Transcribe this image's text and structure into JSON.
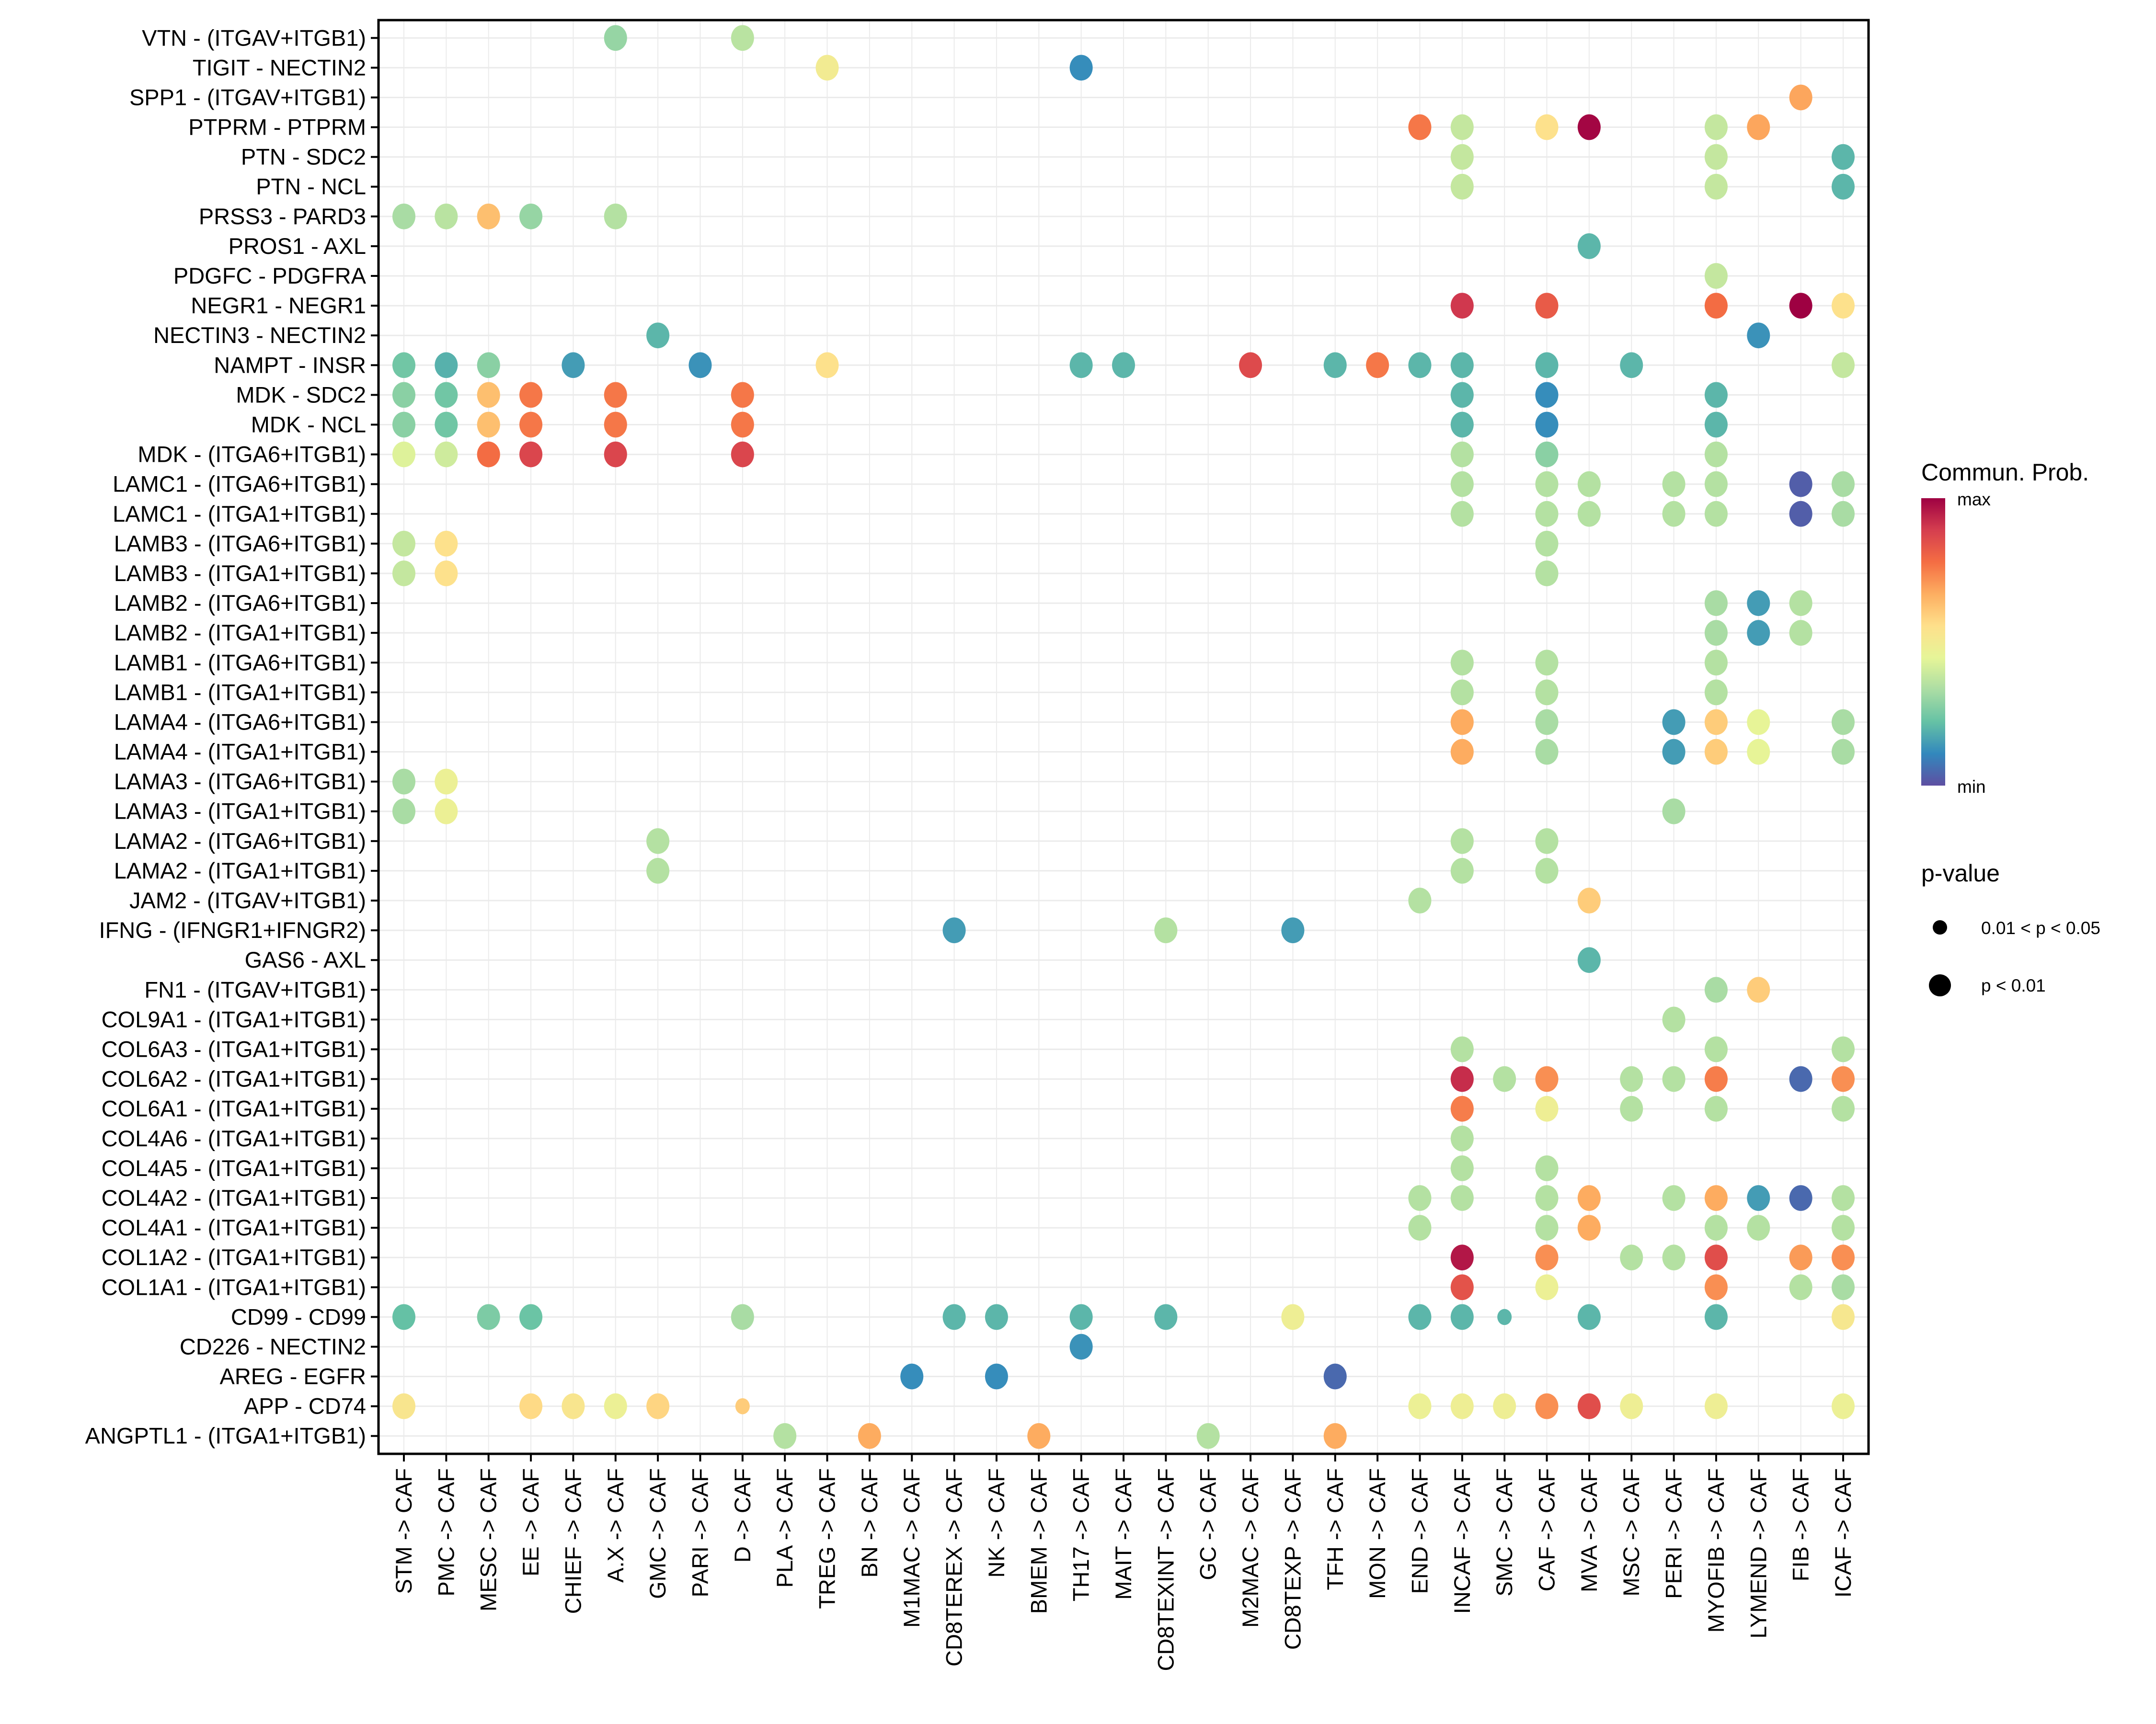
{
  "chart_data": {
    "type": "scatter",
    "subtype": "bubble-dot-plot",
    "title": "",
    "xlabel": "",
    "ylabel": "",
    "grid": true,
    "legend_placement": "right",
    "x_categories": [
      "STM -> CAF",
      "PMC -> CAF",
      "MESC -> CAF",
      "EE -> CAF",
      "CHIEF -> CAF",
      "A.X -> CAF",
      "GMC -> CAF",
      "PARI -> CAF",
      "D -> CAF",
      "PLA -> CAF",
      "TREG -> CAF",
      "BN -> CAF",
      "M1MAC -> CAF",
      "CD8TEREX -> CAF",
      "NK -> CAF",
      "BMEM -> CAF",
      "TH17 -> CAF",
      "MAIT -> CAF",
      "CD8TEXINT -> CAF",
      "GC -> CAF",
      "M2MAC -> CAF",
      "CD8TEXP -> CAF",
      "TFH -> CAF",
      "MON -> CAF",
      "END -> CAF",
      "INCAF -> CAF",
      "SMC -> CAF",
      "CAF -> CAF",
      "MVA -> CAF",
      "MSC -> CAF",
      "PERI -> CAF",
      "MYOFIB -> CAF",
      "LYMEND -> CAF",
      "FIB -> CAF",
      "ICAF -> CAF"
    ],
    "y_categories_top_to_bottom": [
      "VTN - (ITGAV+ITGB1)",
      "TIGIT - NECTIN2",
      "SPP1 - (ITGAV+ITGB1)",
      "PTPRM - PTPRM",
      "PTN - SDC2",
      "PTN - NCL",
      "PRSS3 - PARD3",
      "PROS1 - AXL",
      "PDGFC - PDGFRA",
      "NEGR1 - NEGR1",
      "NECTIN3 - NECTIN2",
      "NAMPT - INSR",
      "MDK - SDC2",
      "MDK - NCL",
      "MDK - (ITGA6+ITGB1)",
      "LAMC1 - (ITGA6+ITGB1)",
      "LAMC1 - (ITGA1+ITGB1)",
      "LAMB3 - (ITGA6+ITGB1)",
      "LAMB3 - (ITGA1+ITGB1)",
      "LAMB2 - (ITGA6+ITGB1)",
      "LAMB2 - (ITGA1+ITGB1)",
      "LAMB1 - (ITGA6+ITGB1)",
      "LAMB1 - (ITGA1+ITGB1)",
      "LAMA4 - (ITGA6+ITGB1)",
      "LAMA4 - (ITGA1+ITGB1)",
      "LAMA3 - (ITGA6+ITGB1)",
      "LAMA3 - (ITGA1+ITGB1)",
      "LAMA2 - (ITGA6+ITGB1)",
      "LAMA2 - (ITGA1+ITGB1)",
      "JAM2 - (ITGAV+ITGB1)",
      "IFNG - (IFNGR1+IFNGR2)",
      "GAS6 - AXL",
      "FN1 - (ITGAV+ITGB1)",
      "COL9A1 - (ITGA1+ITGB1)",
      "COL6A3 - (ITGA1+ITGB1)",
      "COL6A2 - (ITGA1+ITGB1)",
      "COL6A1 - (ITGA1+ITGB1)",
      "COL4A6 - (ITGA1+ITGB1)",
      "COL4A5 - (ITGA1+ITGB1)",
      "COL4A2 - (ITGA1+ITGB1)",
      "COL4A1 - (ITGA1+ITGB1)",
      "COL1A2 - (ITGA1+ITGB1)",
      "COL1A1 - (ITGA1+ITGB1)",
      "CD99 - CD99",
      "CD226 - NECTIN2",
      "AREG - EGFR",
      "APP - CD74",
      "ANGPTL1 - (ITGA1+ITGB1)"
    ],
    "value_scale": "relative communication probability, 0 = min, 1 = max",
    "point_format": "[x_index, relative_prob, p_class] where p_class 1 = p < 0.01, 0 = 0.01 < p < 0.05",
    "rows": [
      [
        [
          5,
          0.3,
          1
        ],
        [
          8,
          0.36,
          1
        ]
      ],
      [
        [
          10,
          0.5,
          1
        ],
        [
          16,
          0.12,
          1
        ]
      ],
      [
        [
          33,
          0.68,
          1
        ]
      ],
      [
        [
          24,
          0.76,
          1
        ],
        [
          25,
          0.38,
          1
        ],
        [
          27,
          0.55,
          1
        ],
        [
          28,
          0.99,
          1
        ],
        [
          31,
          0.38,
          1
        ],
        [
          32,
          0.68,
          1
        ]
      ],
      [
        [
          25,
          0.38,
          1
        ],
        [
          31,
          0.38,
          1
        ],
        [
          34,
          0.2,
          1
        ]
      ],
      [
        [
          25,
          0.38,
          1
        ],
        [
          31,
          0.38,
          1
        ],
        [
          34,
          0.2,
          1
        ]
      ],
      [
        [
          0,
          0.33,
          1
        ],
        [
          1,
          0.36,
          1
        ],
        [
          2,
          0.63,
          1
        ],
        [
          3,
          0.3,
          1
        ],
        [
          5,
          0.35,
          1
        ]
      ],
      [
        [
          28,
          0.2,
          1
        ]
      ],
      [
        [
          31,
          0.38,
          1
        ]
      ],
      [
        [
          25,
          0.9,
          1
        ],
        [
          27,
          0.82,
          1
        ],
        [
          31,
          0.78,
          1
        ],
        [
          33,
          1.0,
          1
        ],
        [
          34,
          0.55,
          1
        ]
      ],
      [
        [
          6,
          0.2,
          1
        ],
        [
          32,
          0.13,
          1
        ]
      ],
      [
        [
          0,
          0.24,
          1
        ],
        [
          1,
          0.19,
          1
        ],
        [
          2,
          0.28,
          1
        ],
        [
          4,
          0.15,
          1
        ],
        [
          7,
          0.13,
          1
        ],
        [
          10,
          0.55,
          1
        ],
        [
          16,
          0.2,
          1
        ],
        [
          17,
          0.2,
          1
        ],
        [
          20,
          0.86,
          1
        ],
        [
          22,
          0.2,
          1
        ],
        [
          23,
          0.76,
          1
        ],
        [
          24,
          0.2,
          1
        ],
        [
          25,
          0.2,
          1
        ],
        [
          27,
          0.2,
          1
        ],
        [
          29,
          0.2,
          1
        ],
        [
          34,
          0.38,
          1
        ]
      ],
      [
        [
          0,
          0.28,
          1
        ],
        [
          1,
          0.24,
          1
        ],
        [
          2,
          0.63,
          1
        ],
        [
          3,
          0.76,
          1
        ],
        [
          5,
          0.76,
          1
        ],
        [
          8,
          0.76,
          1
        ],
        [
          25,
          0.2,
          1
        ],
        [
          27,
          0.12,
          1
        ],
        [
          31,
          0.2,
          1
        ]
      ],
      [
        [
          0,
          0.28,
          1
        ],
        [
          1,
          0.24,
          1
        ],
        [
          2,
          0.63,
          1
        ],
        [
          3,
          0.76,
          1
        ],
        [
          5,
          0.76,
          1
        ],
        [
          8,
          0.76,
          1
        ],
        [
          25,
          0.2,
          1
        ],
        [
          27,
          0.12,
          1
        ],
        [
          31,
          0.2,
          1
        ]
      ],
      [
        [
          0,
          0.43,
          1
        ],
        [
          1,
          0.4,
          1
        ],
        [
          2,
          0.78,
          1
        ],
        [
          3,
          0.87,
          1
        ],
        [
          5,
          0.87,
          1
        ],
        [
          8,
          0.87,
          1
        ],
        [
          25,
          0.35,
          1
        ],
        [
          27,
          0.28,
          1
        ],
        [
          31,
          0.35,
          1
        ]
      ],
      [
        [
          25,
          0.35,
          1
        ],
        [
          27,
          0.35,
          1
        ],
        [
          28,
          0.35,
          1
        ],
        [
          30,
          0.35,
          1
        ],
        [
          31,
          0.35,
          1
        ],
        [
          33,
          0.03,
          1
        ],
        [
          34,
          0.33,
          1
        ]
      ],
      [
        [
          25,
          0.35,
          1
        ],
        [
          27,
          0.35,
          1
        ],
        [
          28,
          0.35,
          1
        ],
        [
          30,
          0.35,
          1
        ],
        [
          31,
          0.35,
          1
        ],
        [
          33,
          0.03,
          1
        ],
        [
          34,
          0.33,
          1
        ]
      ],
      [
        [
          0,
          0.38,
          1
        ],
        [
          1,
          0.55,
          1
        ],
        [
          27,
          0.35,
          1
        ]
      ],
      [
        [
          0,
          0.38,
          1
        ],
        [
          1,
          0.55,
          1
        ],
        [
          27,
          0.35,
          1
        ]
      ],
      [
        [
          31,
          0.33,
          1
        ],
        [
          32,
          0.15,
          1
        ],
        [
          33,
          0.35,
          1
        ]
      ],
      [
        [
          31,
          0.33,
          1
        ],
        [
          32,
          0.15,
          1
        ],
        [
          33,
          0.35,
          1
        ]
      ],
      [
        [
          25,
          0.35,
          1
        ],
        [
          27,
          0.35,
          1
        ],
        [
          31,
          0.35,
          1
        ]
      ],
      [
        [
          25,
          0.35,
          1
        ],
        [
          27,
          0.35,
          1
        ],
        [
          31,
          0.35,
          1
        ]
      ],
      [
        [
          25,
          0.67,
          1
        ],
        [
          27,
          0.33,
          1
        ],
        [
          30,
          0.15,
          1
        ],
        [
          31,
          0.6,
          1
        ],
        [
          32,
          0.45,
          1
        ],
        [
          34,
          0.33,
          1
        ]
      ],
      [
        [
          25,
          0.67,
          1
        ],
        [
          27,
          0.33,
          1
        ],
        [
          30,
          0.15,
          1
        ],
        [
          31,
          0.6,
          1
        ],
        [
          32,
          0.45,
          1
        ],
        [
          34,
          0.33,
          1
        ]
      ],
      [
        [
          0,
          0.33,
          1
        ],
        [
          1,
          0.47,
          1
        ]
      ],
      [
        [
          0,
          0.33,
          1
        ],
        [
          1,
          0.47,
          1
        ],
        [
          30,
          0.33,
          1
        ]
      ],
      [
        [
          6,
          0.35,
          1
        ],
        [
          25,
          0.35,
          1
        ],
        [
          27,
          0.35,
          1
        ]
      ],
      [
        [
          6,
          0.35,
          1
        ],
        [
          25,
          0.35,
          1
        ],
        [
          27,
          0.35,
          1
        ]
      ],
      [
        [
          24,
          0.35,
          1
        ],
        [
          28,
          0.6,
          1
        ]
      ],
      [
        [
          13,
          0.15,
          1
        ],
        [
          18,
          0.35,
          1
        ],
        [
          21,
          0.15,
          1
        ]
      ],
      [
        [
          28,
          0.2,
          1
        ]
      ],
      [
        [
          31,
          0.33,
          1
        ],
        [
          32,
          0.6,
          1
        ]
      ],
      [
        [
          30,
          0.35,
          1
        ]
      ],
      [
        [
          25,
          0.35,
          1
        ],
        [
          31,
          0.35,
          1
        ],
        [
          34,
          0.35,
          1
        ]
      ],
      [
        [
          25,
          0.92,
          1
        ],
        [
          26,
          0.35,
          1
        ],
        [
          27,
          0.72,
          1
        ],
        [
          29,
          0.35,
          1
        ],
        [
          30,
          0.35,
          1
        ],
        [
          31,
          0.75,
          1
        ],
        [
          33,
          0.05,
          1
        ],
        [
          34,
          0.72,
          1
        ]
      ],
      [
        [
          25,
          0.75,
          1
        ],
        [
          27,
          0.48,
          1
        ],
        [
          29,
          0.35,
          1
        ],
        [
          31,
          0.35,
          1
        ],
        [
          34,
          0.35,
          1
        ]
      ],
      [
        [
          25,
          0.35,
          1
        ]
      ],
      [
        [
          25,
          0.35,
          1
        ],
        [
          27,
          0.35,
          1
        ]
      ],
      [
        [
          24,
          0.35,
          1
        ],
        [
          25,
          0.35,
          1
        ],
        [
          27,
          0.35,
          1
        ],
        [
          28,
          0.67,
          1
        ],
        [
          30,
          0.35,
          1
        ],
        [
          31,
          0.67,
          1
        ],
        [
          32,
          0.15,
          1
        ],
        [
          33,
          0.05,
          1
        ],
        [
          34,
          0.35,
          1
        ]
      ],
      [
        [
          24,
          0.35,
          1
        ],
        [
          27,
          0.35,
          1
        ],
        [
          28,
          0.67,
          1
        ],
        [
          31,
          0.35,
          1
        ],
        [
          32,
          0.35,
          1
        ],
        [
          34,
          0.35,
          1
        ]
      ],
      [
        [
          25,
          0.96,
          1
        ],
        [
          27,
          0.72,
          1
        ],
        [
          29,
          0.35,
          1
        ],
        [
          30,
          0.35,
          1
        ],
        [
          31,
          0.85,
          1
        ],
        [
          33,
          0.7,
          1
        ],
        [
          34,
          0.72,
          1
        ]
      ],
      [
        [
          25,
          0.84,
          1
        ],
        [
          27,
          0.47,
          1
        ],
        [
          31,
          0.72,
          1
        ],
        [
          33,
          0.35,
          1
        ],
        [
          34,
          0.33,
          1
        ]
      ],
      [
        [
          0,
          0.22,
          1
        ],
        [
          2,
          0.26,
          1
        ],
        [
          3,
          0.23,
          1
        ],
        [
          8,
          0.33,
          1
        ],
        [
          13,
          0.2,
          1
        ],
        [
          14,
          0.2,
          1
        ],
        [
          16,
          0.2,
          1
        ],
        [
          18,
          0.2,
          1
        ],
        [
          21,
          0.48,
          1
        ],
        [
          24,
          0.2,
          1
        ],
        [
          25,
          0.2,
          1
        ],
        [
          26,
          0.2,
          0
        ],
        [
          28,
          0.2,
          1
        ],
        [
          31,
          0.2,
          1
        ],
        [
          34,
          0.52,
          1
        ]
      ],
      [
        [
          16,
          0.13,
          1
        ]
      ],
      [
        [
          12,
          0.12,
          1
        ],
        [
          14,
          0.12,
          1
        ],
        [
          22,
          0.05,
          1
        ]
      ],
      [
        [
          0,
          0.53,
          1
        ],
        [
          3,
          0.57,
          1
        ],
        [
          4,
          0.53,
          1
        ],
        [
          5,
          0.47,
          1
        ],
        [
          6,
          0.58,
          1
        ],
        [
          8,
          0.6,
          0
        ],
        [
          24,
          0.47,
          1
        ],
        [
          25,
          0.48,
          1
        ],
        [
          26,
          0.48,
          1
        ],
        [
          27,
          0.72,
          1
        ],
        [
          28,
          0.85,
          1
        ],
        [
          29,
          0.48,
          1
        ],
        [
          31,
          0.48,
          1
        ],
        [
          34,
          0.47,
          1
        ]
      ],
      [
        [
          9,
          0.35,
          1
        ],
        [
          11,
          0.67,
          1
        ],
        [
          15,
          0.67,
          1
        ],
        [
          19,
          0.35,
          1
        ],
        [
          22,
          0.67,
          1
        ]
      ]
    ],
    "color_legend": {
      "title": "Commun. Prob.",
      "max_label": "max",
      "min_label": "min",
      "palette": [
        "#5E4FA2",
        "#3288BD",
        "#66C2A5",
        "#ABDDA4",
        "#E6F598",
        "#FEE08B",
        "#FDAE61",
        "#F46D43",
        "#D53E4F",
        "#9E0142"
      ]
    },
    "size_legend": {
      "title": "p-value",
      "items": [
        {
          "label": "0.01 < p < 0.05",
          "p_class": 0
        },
        {
          "label": "p < 0.01",
          "p_class": 1
        }
      ]
    }
  }
}
